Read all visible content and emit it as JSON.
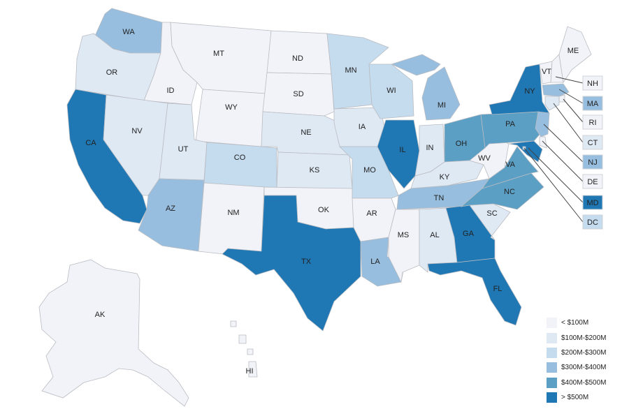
{
  "legend": {
    "items": [
      {
        "label": "< $100M",
        "color": "#f2f3f9"
      },
      {
        "label": "$100M-$200M",
        "color": "#dfe9f4"
      },
      {
        "label": "$200M-$300M",
        "color": "#c5dbee"
      },
      {
        "label": "$300M-$400M",
        "color": "#97bedf"
      },
      {
        "label": "$400M-$500M",
        "color": "#5b9fc4"
      },
      {
        "label": "> $500M",
        "color": "#1f77b4"
      }
    ]
  },
  "states": [
    {
      "abbr": "WA",
      "tier": 3
    },
    {
      "abbr": "OR",
      "tier": 1
    },
    {
      "abbr": "CA",
      "tier": 5
    },
    {
      "abbr": "ID",
      "tier": 0
    },
    {
      "abbr": "NV",
      "tier": 1
    },
    {
      "abbr": "MT",
      "tier": 0
    },
    {
      "abbr": "WY",
      "tier": 0
    },
    {
      "abbr": "UT",
      "tier": 1
    },
    {
      "abbr": "AZ",
      "tier": 3
    },
    {
      "abbr": "CO",
      "tier": 2
    },
    {
      "abbr": "NM",
      "tier": 0
    },
    {
      "abbr": "ND",
      "tier": 0
    },
    {
      "abbr": "SD",
      "tier": 0
    },
    {
      "abbr": "NE",
      "tier": 1
    },
    {
      "abbr": "KS",
      "tier": 1
    },
    {
      "abbr": "OK",
      "tier": 0
    },
    {
      "abbr": "TX",
      "tier": 5
    },
    {
      "abbr": "MN",
      "tier": 2
    },
    {
      "abbr": "IA",
      "tier": 1
    },
    {
      "abbr": "MO",
      "tier": 2
    },
    {
      "abbr": "AR",
      "tier": 0
    },
    {
      "abbr": "LA",
      "tier": 3
    },
    {
      "abbr": "WI",
      "tier": 2
    },
    {
      "abbr": "IL",
      "tier": 5
    },
    {
      "abbr": "MI",
      "tier": 3
    },
    {
      "abbr": "IN",
      "tier": 1
    },
    {
      "abbr": "OH",
      "tier": 4
    },
    {
      "abbr": "KY",
      "tier": 1
    },
    {
      "abbr": "TN",
      "tier": 3
    },
    {
      "abbr": "MS",
      "tier": 0
    },
    {
      "abbr": "AL",
      "tier": 1
    },
    {
      "abbr": "GA",
      "tier": 5
    },
    {
      "abbr": "FL",
      "tier": 5
    },
    {
      "abbr": "SC",
      "tier": 1
    },
    {
      "abbr": "NC",
      "tier": 4
    },
    {
      "abbr": "VA",
      "tier": 4
    },
    {
      "abbr": "WV",
      "tier": 0
    },
    {
      "abbr": "PA",
      "tier": 4
    },
    {
      "abbr": "NY",
      "tier": 5
    },
    {
      "abbr": "VT",
      "tier": 0
    },
    {
      "abbr": "NH",
      "tier": 0
    },
    {
      "abbr": "ME",
      "tier": 0
    },
    {
      "abbr": "MA",
      "tier": 3
    },
    {
      "abbr": "RI",
      "tier": 0
    },
    {
      "abbr": "CT",
      "tier": 1
    },
    {
      "abbr": "NJ",
      "tier": 3
    },
    {
      "abbr": "DE",
      "tier": 0
    },
    {
      "abbr": "MD",
      "tier": 5
    },
    {
      "abbr": "DC",
      "tier": 2
    },
    {
      "abbr": "AK",
      "tier": 0
    },
    {
      "abbr": "HI",
      "tier": 0
    }
  ]
}
